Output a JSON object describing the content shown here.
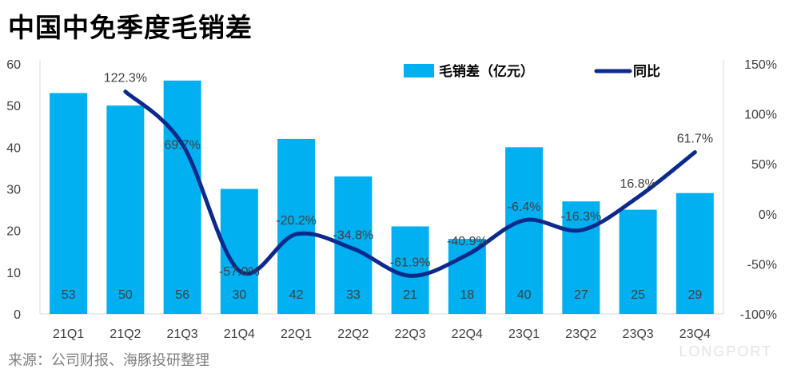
{
  "title": "中国中免季度毛销差",
  "source": "来源：公司财报、海豚投研整理",
  "watermark": "LONGPORT",
  "chart_data": {
    "type": "bar",
    "categories": [
      "21Q1",
      "21Q2",
      "21Q3",
      "21Q4",
      "22Q1",
      "22Q2",
      "22Q3",
      "22Q4",
      "23Q1",
      "23Q2",
      "23Q3",
      "23Q4"
    ],
    "series": [
      {
        "name": "毛销差（亿元）",
        "type": "bar",
        "axis": "left",
        "color": "#00b0f0",
        "values": [
          53,
          50,
          56,
          30,
          42,
          33,
          21,
          18,
          40,
          27,
          25,
          29
        ],
        "labels": [
          "53",
          "50",
          "56",
          "30",
          "42",
          "33",
          "21",
          "18",
          "40",
          "27",
          "25",
          "29"
        ]
      },
      {
        "name": "同比",
        "type": "line",
        "axis": "right",
        "color": "#0c2a8c",
        "values": [
          null,
          122.3,
          69.7,
          -57.0,
          -20.2,
          -34.8,
          -61.9,
          -40.9,
          -6.4,
          -16.3,
          16.8,
          61.7
        ],
        "labels": [
          "",
          "122.3%",
          "69.7%",
          "-57.0%",
          "-20.2%",
          "-34.8%",
          "-61.9%",
          "-40.9%",
          "-6.4%",
          "-16.3%",
          "16.8%",
          "61.7%"
        ]
      }
    ],
    "y_left": {
      "min": 0,
      "max": 60,
      "ticks": [
        "0",
        "10",
        "20",
        "30",
        "40",
        "50",
        "60"
      ]
    },
    "y_right": {
      "min": -100,
      "max": 150,
      "ticks": [
        "-100%",
        "-50%",
        "0%",
        "50%",
        "100%",
        "150%"
      ]
    },
    "legend_position": "top-right",
    "grid": false
  }
}
